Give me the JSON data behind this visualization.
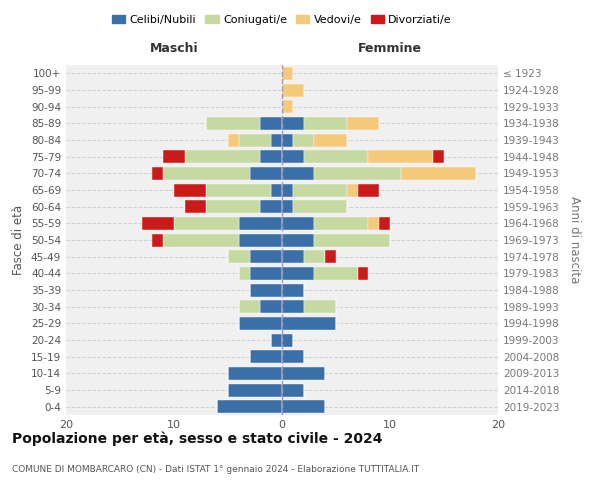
{
  "age_groups": [
    "0-4",
    "5-9",
    "10-14",
    "15-19",
    "20-24",
    "25-29",
    "30-34",
    "35-39",
    "40-44",
    "45-49",
    "50-54",
    "55-59",
    "60-64",
    "65-69",
    "70-74",
    "75-79",
    "80-84",
    "85-89",
    "90-94",
    "95-99",
    "100+"
  ],
  "birth_years": [
    "2019-2023",
    "2014-2018",
    "2009-2013",
    "2004-2008",
    "1999-2003",
    "1994-1998",
    "1989-1993",
    "1984-1988",
    "1979-1983",
    "1974-1978",
    "1969-1973",
    "1964-1968",
    "1959-1963",
    "1954-1958",
    "1949-1953",
    "1944-1948",
    "1939-1943",
    "1934-1938",
    "1929-1933",
    "1924-1928",
    "≤ 1923"
  ],
  "colors": {
    "celibi": "#3a6fa8",
    "coniugati": "#c5d9a0",
    "vedovi": "#f5c97a",
    "divorziati": "#cc1a1a"
  },
  "males": {
    "celibi": [
      6,
      5,
      5,
      3,
      1,
      4,
      2,
      3,
      3,
      3,
      4,
      4,
      2,
      1,
      3,
      2,
      1,
      2,
      0,
      0,
      0
    ],
    "coniugati": [
      0,
      0,
      0,
      0,
      0,
      0,
      2,
      0,
      1,
      2,
      7,
      6,
      5,
      6,
      8,
      7,
      3,
      5,
      0,
      0,
      0
    ],
    "vedovi": [
      0,
      0,
      0,
      0,
      0,
      0,
      0,
      0,
      0,
      0,
      0,
      0,
      0,
      0,
      0,
      0,
      1,
      0,
      0,
      0,
      0
    ],
    "divorziati": [
      0,
      0,
      0,
      0,
      0,
      0,
      0,
      0,
      0,
      0,
      1,
      3,
      2,
      3,
      1,
      2,
      0,
      0,
      0,
      0,
      0
    ]
  },
  "females": {
    "celibi": [
      4,
      2,
      4,
      2,
      1,
      5,
      2,
      2,
      3,
      2,
      3,
      3,
      1,
      1,
      3,
      2,
      1,
      2,
      0,
      0,
      0
    ],
    "coniugati": [
      0,
      0,
      0,
      0,
      0,
      0,
      3,
      0,
      4,
      2,
      7,
      5,
      5,
      5,
      8,
      6,
      2,
      4,
      0,
      0,
      0
    ],
    "vedovi": [
      0,
      0,
      0,
      0,
      0,
      0,
      0,
      0,
      0,
      0,
      0,
      1,
      0,
      1,
      7,
      6,
      3,
      3,
      1,
      2,
      1
    ],
    "divorziati": [
      0,
      0,
      0,
      0,
      0,
      0,
      0,
      0,
      1,
      1,
      0,
      1,
      0,
      2,
      0,
      1,
      0,
      0,
      0,
      0,
      0
    ]
  },
  "title": "Popolazione per età, sesso e stato civile - 2024",
  "subtitle": "COMUNE DI MOMBARCARO (CN) - Dati ISTAT 1° gennaio 2024 - Elaborazione TUTTITALIA.IT",
  "xlabel_left": "Maschi",
  "xlabel_right": "Femmine",
  "ylabel": "Fasce di età",
  "ylabel_right": "Anni di nascita",
  "xlim": 20,
  "bg_color": "#f0f0f0",
  "grid_color": "#cccccc"
}
